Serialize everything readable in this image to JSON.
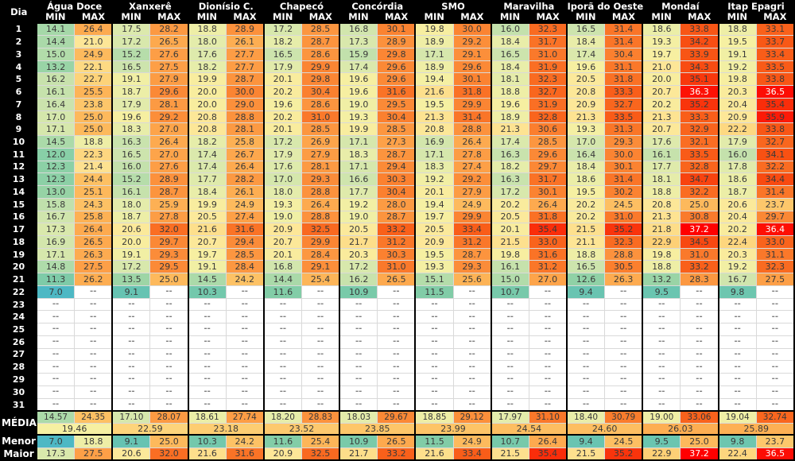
{
  "table": {
    "day_header": "Dia",
    "min_label": "MIN",
    "max_label": "MAX",
    "empty_placeholder": "--",
    "cities": [
      "Água Doce",
      "Xanxerê",
      "Dionísio C.",
      "Chapecó",
      "Concórdia",
      "SMO",
      "Maravilha",
      "Iporã do Oeste",
      "Mondaí",
      "Itap Epagri"
    ],
    "days": [
      {
        "d": "1",
        "v": [
          "14.1",
          "26.4",
          "17.5",
          "28.2",
          "18.8",
          "28.9",
          "17.2",
          "28.5",
          "16.8",
          "30.1",
          "19.8",
          "30.0",
          "16.0",
          "32.3",
          "16.5",
          "31.4",
          "18.6",
          "33.8",
          "18.8",
          "33.1"
        ]
      },
      {
        "d": "2",
        "v": [
          "14.4",
          "21.0",
          "17.2",
          "26.5",
          "18.0",
          "26.1",
          "18.2",
          "28.7",
          "17.3",
          "28.9",
          "18.9",
          "29.2",
          "18.4",
          "31.7",
          "18.4",
          "31.4",
          "19.3",
          "34.2",
          "19.5",
          "33.7"
        ]
      },
      {
        "d": "3",
        "v": [
          "15.0",
          "24.9",
          "15.2",
          "27.6",
          "17.6",
          "27.7",
          "16.5",
          "28.6",
          "15.9",
          "29.8",
          "17.1",
          "29.1",
          "16.5",
          "31.0",
          "17.4",
          "30.4",
          "19.7",
          "33.9",
          "19.1",
          "33.4"
        ]
      },
      {
        "d": "4",
        "v": [
          "13.2",
          "22.1",
          "16.5",
          "27.5",
          "18.2",
          "27.7",
          "17.9",
          "29.9",
          "17.4",
          "29.6",
          "18.9",
          "29.6",
          "18.4",
          "31.9",
          "19.6",
          "31.1",
          "21.0",
          "34.3",
          "19.2",
          "33.5"
        ]
      },
      {
        "d": "5",
        "v": [
          "16.2",
          "22.7",
          "19.1",
          "27.9",
          "19.9",
          "28.7",
          "20.1",
          "29.8",
          "19.6",
          "29.6",
          "19.4",
          "30.1",
          "18.1",
          "32.3",
          "20.5",
          "31.8",
          "20.0",
          "35.1",
          "19.8",
          "33.8"
        ]
      },
      {
        "d": "6",
        "v": [
          "16.1",
          "25.5",
          "18.7",
          "29.6",
          "20.0",
          "30.0",
          "20.2",
          "30.4",
          "19.6",
          "31.6",
          "21.6",
          "31.8",
          "18.8",
          "32.7",
          "20.8",
          "33.3",
          "20.7",
          "36.3",
          "20.3",
          "36.5"
        ]
      },
      {
        "d": "7",
        "v": [
          "16.4",
          "23.8",
          "17.9",
          "28.1",
          "20.0",
          "29.0",
          "19.6",
          "28.6",
          "19.0",
          "29.5",
          "19.5",
          "29.9",
          "19.6",
          "31.9",
          "20.9",
          "32.7",
          "20.2",
          "35.2",
          "20.4",
          "35.4"
        ]
      },
      {
        "d": "8",
        "v": [
          "17.0",
          "25.0",
          "19.6",
          "29.2",
          "20.8",
          "28.8",
          "20.2",
          "31.0",
          "19.3",
          "30.4",
          "21.3",
          "31.4",
          "18.9",
          "32.8",
          "21.3",
          "33.5",
          "21.3",
          "33.3",
          "20.9",
          "35.9"
        ]
      },
      {
        "d": "9",
        "v": [
          "17.1",
          "25.0",
          "18.3",
          "27.0",
          "20.8",
          "28.1",
          "20.1",
          "28.5",
          "19.9",
          "28.5",
          "20.8",
          "28.8",
          "21.3",
          "30.6",
          "19.3",
          "31.3",
          "20.7",
          "32.9",
          "22.2",
          "33.8"
        ]
      },
      {
        "d": "10",
        "v": [
          "14.5",
          "18.8",
          "16.3",
          "26.4",
          "18.2",
          "25.8",
          "17.2",
          "26.9",
          "17.1",
          "27.3",
          "16.9",
          "26.4",
          "17.4",
          "28.5",
          "17.0",
          "29.3",
          "17.6",
          "32.1",
          "17.9",
          "32.7"
        ]
      },
      {
        "d": "11",
        "v": [
          "12.0",
          "22.3",
          "16.5",
          "27.0",
          "17.4",
          "26.7",
          "17.9",
          "27.9",
          "18.3",
          "28.7",
          "17.1",
          "27.8",
          "16.3",
          "29.6",
          "16.4",
          "30.0",
          "16.1",
          "33.5",
          "16.0",
          "34.1"
        ]
      },
      {
        "d": "12",
        "v": [
          "12.3",
          "21.4",
          "16.0",
          "27.6",
          "17.4",
          "26.4",
          "17.6",
          "28.1",
          "17.1",
          "29.4",
          "18.3",
          "27.4",
          "18.2",
          "29.7",
          "18.4",
          "30.1",
          "17.7",
          "32.8",
          "17.8",
          "32.2"
        ]
      },
      {
        "d": "13",
        "v": [
          "12.3",
          "24.4",
          "15.2",
          "28.9",
          "17.7",
          "28.2",
          "17.0",
          "29.3",
          "16.6",
          "30.3",
          "19.2",
          "29.2",
          "16.3",
          "31.7",
          "18.6",
          "31.4",
          "18.1",
          "34.7",
          "18.6",
          "34.4"
        ]
      },
      {
        "d": "14",
        "v": [
          "13.0",
          "25.1",
          "16.1",
          "28.7",
          "18.4",
          "26.1",
          "18.0",
          "28.8",
          "17.7",
          "30.4",
          "20.1",
          "27.9",
          "17.2",
          "30.1",
          "19.5",
          "30.2",
          "18.8",
          "32.2",
          "18.7",
          "31.4"
        ]
      },
      {
        "d": "15",
        "v": [
          "15.8",
          "24.3",
          "18.0",
          "25.9",
          "19.9",
          "24.9",
          "19.3",
          "26.4",
          "19.2",
          "28.0",
          "19.4",
          "24.9",
          "20.2",
          "26.4",
          "20.2",
          "24.5",
          "20.8",
          "25.0",
          "20.6",
          "23.7"
        ]
      },
      {
        "d": "16",
        "v": [
          "16.7",
          "25.8",
          "18.7",
          "27.8",
          "20.5",
          "27.4",
          "19.0",
          "28.8",
          "19.0",
          "28.7",
          "19.7",
          "29.9",
          "20.5",
          "31.8",
          "20.2",
          "31.0",
          "21.3",
          "30.8",
          "20.4",
          "29.7"
        ]
      },
      {
        "d": "17",
        "v": [
          "17.3",
          "26.4",
          "20.6",
          "32.0",
          "21.6",
          "31.6",
          "20.9",
          "32.5",
          "20.5",
          "33.2",
          "20.5",
          "33.4",
          "20.1",
          "35.4",
          "21.5",
          "35.2",
          "21.8",
          "37.2",
          "20.2",
          "36.4"
        ]
      },
      {
        "d": "18",
        "v": [
          "16.9",
          "26.5",
          "20.0",
          "29.7",
          "20.7",
          "29.4",
          "20.7",
          "29.9",
          "21.7",
          "31.2",
          "20.9",
          "31.2",
          "21.5",
          "33.0",
          "21.1",
          "32.3",
          "22.9",
          "34.5",
          "22.4",
          "33.0"
        ]
      },
      {
        "d": "19",
        "v": [
          "17.1",
          "26.3",
          "19.1",
          "29.3",
          "19.7",
          "28.5",
          "20.1",
          "28.4",
          "20.3",
          "30.3",
          "19.5",
          "28.7",
          "19.8",
          "31.6",
          "18.8",
          "28.8",
          "19.8",
          "31.0",
          "20.3",
          "31.1"
        ]
      },
      {
        "d": "20",
        "v": [
          "14.8",
          "27.5",
          "17.2",
          "29.5",
          "19.1",
          "28.4",
          "16.8",
          "29.1",
          "17.2",
          "31.0",
          "19.3",
          "29.3",
          "16.1",
          "31.2",
          "16.5",
          "30.5",
          "18.8",
          "33.2",
          "19.2",
          "32.3"
        ]
      },
      {
        "d": "21",
        "v": [
          "11.3",
          "26.2",
          "13.5",
          "25.0",
          "14.5",
          "24.2",
          "14.4",
          "25.4",
          "16.2",
          "26.5",
          "15.1",
          "25.6",
          "15.0",
          "27.0",
          "12.6",
          "26.3",
          "13.2",
          "28.3",
          "16.7",
          "27.5"
        ]
      },
      {
        "d": "22",
        "v": [
          "7.0",
          null,
          "9.1",
          null,
          "10.3",
          null,
          "11.6",
          null,
          "10.9",
          null,
          "11.5",
          null,
          "10.7",
          null,
          "9.4",
          null,
          "9.5",
          null,
          "9.8",
          null
        ]
      },
      {
        "d": "23",
        "v": [
          null,
          null,
          null,
          null,
          null,
          null,
          null,
          null,
          null,
          null,
          null,
          null,
          null,
          null,
          null,
          null,
          null,
          null,
          null,
          null
        ]
      },
      {
        "d": "24",
        "v": [
          null,
          null,
          null,
          null,
          null,
          null,
          null,
          null,
          null,
          null,
          null,
          null,
          null,
          null,
          null,
          null,
          null,
          null,
          null,
          null
        ]
      },
      {
        "d": "25",
        "v": [
          null,
          null,
          null,
          null,
          null,
          null,
          null,
          null,
          null,
          null,
          null,
          null,
          null,
          null,
          null,
          null,
          null,
          null,
          null,
          null
        ]
      },
      {
        "d": "26",
        "v": [
          null,
          null,
          null,
          null,
          null,
          null,
          null,
          null,
          null,
          null,
          null,
          null,
          null,
          null,
          null,
          null,
          null,
          null,
          null,
          null
        ]
      },
      {
        "d": "27",
        "v": [
          null,
          null,
          null,
          null,
          null,
          null,
          null,
          null,
          null,
          null,
          null,
          null,
          null,
          null,
          null,
          null,
          null,
          null,
          null,
          null
        ]
      },
      {
        "d": "28",
        "v": [
          null,
          null,
          null,
          null,
          null,
          null,
          null,
          null,
          null,
          null,
          null,
          null,
          null,
          null,
          null,
          null,
          null,
          null,
          null,
          null
        ]
      },
      {
        "d": "29",
        "v": [
          null,
          null,
          null,
          null,
          null,
          null,
          null,
          null,
          null,
          null,
          null,
          null,
          null,
          null,
          null,
          null,
          null,
          null,
          null,
          null
        ]
      },
      {
        "d": "30",
        "v": [
          null,
          null,
          null,
          null,
          null,
          null,
          null,
          null,
          null,
          null,
          null,
          null,
          null,
          null,
          null,
          null,
          null,
          null,
          null,
          null
        ]
      },
      {
        "d": "31",
        "v": [
          null,
          null,
          null,
          null,
          null,
          null,
          null,
          null,
          null,
          null,
          null,
          null,
          null,
          null,
          null,
          null,
          null,
          null,
          null,
          null
        ]
      }
    ],
    "media_label": "MÉDIA",
    "media_row": [
      "14.57",
      "24.35",
      "17.10",
      "28.07",
      "18.61",
      "27.74",
      "18.20",
      "28.83",
      "18.03",
      "29.67",
      "18.85",
      "29.12",
      "17.97",
      "31.10",
      "18.40",
      "30.79",
      "19.00",
      "33.06",
      "19.04",
      "32.74"
    ],
    "media_overall": [
      "19.46",
      "22.59",
      "23.18",
      "23.52",
      "23.85",
      "23.99",
      "24.54",
      "24.60",
      "26.03",
      "25.89"
    ],
    "menor_label": "Menor",
    "menor_row": [
      "7.0",
      "18.8",
      "9.1",
      "25.0",
      "10.3",
      "24.2",
      "11.6",
      "25.4",
      "10.9",
      "26.5",
      "11.5",
      "24.9",
      "10.7",
      "26.4",
      "9.4",
      "24.5",
      "9.5",
      "25.0",
      "9.8",
      "23.7"
    ],
    "maior_label": "Maior",
    "maior_row": [
      "17.3",
      "27.5",
      "20.6",
      "32.0",
      "21.6",
      "31.6",
      "20.9",
      "32.5",
      "21.7",
      "33.2",
      "21.6",
      "33.4",
      "21.5",
      "35.4",
      "21.5",
      "35.2",
      "22.9",
      "37.2",
      "22.4",
      "36.5"
    ]
  },
  "colors": {
    "header_bg": "#000000",
    "header_text": "#ffffff",
    "cell_text": "#3a3a3a",
    "hot_text": "#ffffff",
    "hot_text_threshold": 36,
    "empty_bg": "#ffffff",
    "empty_text": "#7f7f7f",
    "scale_stops": [
      [
        7.0,
        "#4db8c4"
      ],
      [
        9.0,
        "#65c3b3"
      ],
      [
        11.0,
        "#7acaa8"
      ],
      [
        13.0,
        "#96d3a5"
      ],
      [
        15.0,
        "#b2dcaa"
      ],
      [
        16.5,
        "#cde4ad"
      ],
      [
        18.0,
        "#e4ecab"
      ],
      [
        19.5,
        "#f6f0a2"
      ],
      [
        21.0,
        "#fde697"
      ],
      [
        22.5,
        "#fdd57c"
      ],
      [
        24.0,
        "#fdc467"
      ],
      [
        25.5,
        "#fdb457"
      ],
      [
        27.0,
        "#fda44a"
      ],
      [
        28.5,
        "#fc9640"
      ],
      [
        30.0,
        "#fb8432"
      ],
      [
        31.5,
        "#fa7427"
      ],
      [
        33.0,
        "#f9631c"
      ],
      [
        34.0,
        "#f85314"
      ],
      [
        35.0,
        "#f83c0d"
      ],
      [
        36.0,
        "#fc1606"
      ],
      [
        37.2,
        "#ff0000"
      ]
    ]
  }
}
